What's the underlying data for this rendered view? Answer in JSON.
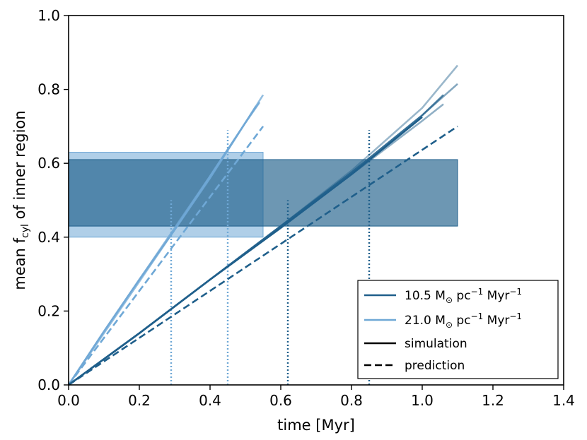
{
  "chart_data": {
    "type": "line",
    "xlabel": "time [Myr]",
    "ylabel": "mean f_cyl of inner region",
    "ylabel_parts": {
      "pre": "mean f",
      "sub": "cyl",
      "post": " of inner region"
    },
    "xlim": [
      0.0,
      1.4
    ],
    "ylim": [
      0.0,
      1.0
    ],
    "xticks": [
      0.0,
      0.2,
      0.4,
      0.6,
      0.8,
      1.0,
      1.2,
      1.4
    ],
    "xtick_labels": [
      "0.0",
      "0.2",
      "0.4",
      "0.6",
      "0.8",
      "1.0",
      "1.2",
      "1.4"
    ],
    "yticks": [
      0.0,
      0.2,
      0.4,
      0.6,
      0.8,
      1.0
    ],
    "ytick_labels": [
      "0.0",
      "0.2",
      "0.4",
      "0.6",
      "0.8",
      "1.0"
    ],
    "grid": false,
    "colors": {
      "dark": "#1f5f8b",
      "light": "#6fa8d6"
    },
    "shaded_regions": [
      {
        "series": "21.0",
        "x": [
          0.0,
          0.55
        ],
        "y": [
          0.4,
          0.63
        ],
        "color": "#6fa8d6",
        "alpha": 0.55
      },
      {
        "series": "10.5",
        "x": [
          0.0,
          1.1
        ],
        "y": [
          0.43,
          0.61
        ],
        "color": "#1f5f8b",
        "alpha": 0.65
      }
    ],
    "vertical_markers": [
      {
        "x": 0.29,
        "y_top": 0.5,
        "color": "#6fa8d6"
      },
      {
        "x": 0.45,
        "y_top": 0.69,
        "color": "#6fa8d6"
      },
      {
        "x": 0.62,
        "y_top": 0.5,
        "color": "#1f5f8b"
      },
      {
        "x": 0.85,
        "y_top": 0.69,
        "color": "#1f5f8b"
      }
    ],
    "series": [
      {
        "name": "21.0 sim a",
        "group": "21.0",
        "kind": "simulation",
        "color": "#6fa8d6",
        "alpha": 0.9,
        "x": [
          0.0,
          0.1,
          0.2,
          0.3,
          0.4,
          0.5,
          0.54
        ],
        "y": [
          0.0,
          0.145,
          0.285,
          0.42,
          0.56,
          0.71,
          0.765
        ]
      },
      {
        "name": "21.0 sim b",
        "group": "21.0",
        "kind": "simulation",
        "color": "#6fa8d6",
        "alpha": 0.75,
        "x": [
          0.0,
          0.1,
          0.2,
          0.3,
          0.4,
          0.5,
          0.55
        ],
        "y": [
          0.0,
          0.14,
          0.28,
          0.42,
          0.565,
          0.71,
          0.785
        ]
      },
      {
        "name": "21.0 sim c",
        "group": "21.0",
        "kind": "simulation",
        "color": "#6fa8d6",
        "alpha": 0.8,
        "x": [
          0.0,
          0.1,
          0.2,
          0.3,
          0.4,
          0.5,
          0.53
        ],
        "y": [
          0.0,
          0.145,
          0.285,
          0.425,
          0.565,
          0.71,
          0.755
        ]
      },
      {
        "name": "21.0 prediction",
        "group": "21.0",
        "kind": "prediction",
        "color": "#6fa8d6",
        "alpha": 1.0,
        "x": [
          0.0,
          0.55
        ],
        "y": [
          0.0,
          0.7
        ]
      },
      {
        "name": "10.5 sim a",
        "group": "10.5",
        "kind": "simulation",
        "color": "#1f5f8b",
        "alpha": 1.0,
        "x": [
          0.0,
          0.2,
          0.4,
          0.6,
          0.8,
          1.0
        ],
        "y": [
          0.0,
          0.14,
          0.285,
          0.425,
          0.57,
          0.725
        ]
      },
      {
        "name": "10.5 sim b",
        "group": "10.5",
        "kind": "simulation",
        "color": "#1f5f8b",
        "alpha": 0.75,
        "x": [
          0.0,
          0.2,
          0.4,
          0.6,
          0.8,
          1.0,
          1.06
        ],
        "y": [
          0.0,
          0.14,
          0.285,
          0.43,
          0.575,
          0.73,
          0.785
        ]
      },
      {
        "name": "10.5 sim c",
        "group": "10.5",
        "kind": "simulation",
        "color": "#1f5f8b",
        "alpha": 0.55,
        "x": [
          0.0,
          0.2,
          0.4,
          0.6,
          0.8,
          1.0,
          1.1
        ],
        "y": [
          0.0,
          0.14,
          0.285,
          0.43,
          0.575,
          0.73,
          0.815
        ]
      },
      {
        "name": "10.5 sim d",
        "group": "10.5",
        "kind": "simulation",
        "color": "#1f5f8b",
        "alpha": 0.45,
        "x": [
          0.0,
          0.2,
          0.4,
          0.6,
          0.8,
          1.0,
          1.1
        ],
        "y": [
          0.0,
          0.14,
          0.285,
          0.43,
          0.58,
          0.75,
          0.865
        ]
      },
      {
        "name": "10.5 sim e",
        "group": "10.5",
        "kind": "simulation",
        "color": "#1f5f8b",
        "alpha": 0.5,
        "x": [
          0.0,
          0.2,
          0.4,
          0.6,
          0.8,
          1.0,
          1.06
        ],
        "y": [
          0.0,
          0.14,
          0.285,
          0.43,
          0.57,
          0.715,
          0.76
        ]
      },
      {
        "name": "10.5 prediction",
        "group": "10.5",
        "kind": "prediction",
        "color": "#1f5f8b",
        "alpha": 1.0,
        "x": [
          0.0,
          1.1
        ],
        "y": [
          0.0,
          0.7
        ]
      }
    ],
    "legend": {
      "position": "lower-right",
      "entries": [
        {
          "style": "solid",
          "color": "#1f5f8b",
          "label_main": "10.5 M",
          "label_sub": "⊙",
          "label_mid": " pc",
          "label_sup1": "−1",
          "label_mid2": " Myr",
          "label_sup2": "−1"
        },
        {
          "style": "solid",
          "color": "#6fa8d6",
          "label_main": "21.0 M",
          "label_sub": "⊙",
          "label_mid": " pc",
          "label_sup1": "−1",
          "label_mid2": " Myr",
          "label_sup2": "−1"
        },
        {
          "style": "solid",
          "color": "#000000",
          "label_main": "simulation"
        },
        {
          "style": "dashed",
          "color": "#000000",
          "label_main": "prediction"
        }
      ]
    }
  }
}
